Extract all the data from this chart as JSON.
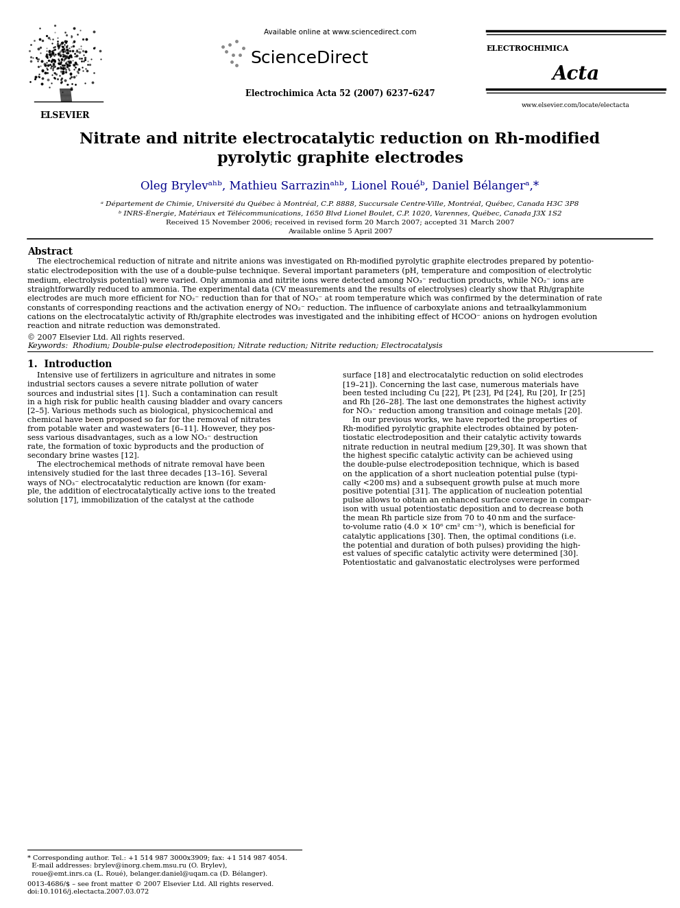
{
  "bg_color": "#ffffff",
  "title_line1": "Nitrate and nitrite electrocatalytic reduction on Rh-modified",
  "title_line2": "pyrolytic graphite electrodes",
  "author_line": "Oleg Brylevᵃʰᵇ, Mathieu Sarrazinᵃʰᵇ, Lionel Rouéᵇ, Daniel Bélangerᵃ,*",
  "affil_a": "ᵃ Département de Chimie, Université du Québec à Montréal, C.P. 8888, Succursale Centre-Ville, Montréal, Québec, Canada H3C 3P8",
  "affil_b": "ᵇ INRS-Énergie, Matériaux et Télécommunications, 1650 Blvd Lionel Boulet, C.P. 1020, Varennes, Québec, Canada J3X 1S2",
  "received": "Received 15 November 2006; received in revised form 20 March 2007; accepted 31 March 2007",
  "available_online_date": "Available online 5 April 2007",
  "journal_info": "Electrochimica Acta 52 (2007) 6237–6247",
  "available_online_text": "Available online at www.sciencedirect.com",
  "website": "www.elsevier.com/locate/electacta",
  "elsevier_text": "ELSEVIER",
  "electrochimica_text": "ELECTROCHIMICA",
  "acta_text": "Acta",
  "sciencedirect_text": "ScienceDirect",
  "abstract_title": "Abstract",
  "abstract_body": "    The electrochemical reduction of nitrate and nitrite anions was investigated on Rh-modified pyrolytic graphite electrodes prepared by potentio-\nstatic electrodeposition with the use of a double-pulse technique. Several important parameters (pH, temperature and composition of electrolytic\nmedium, electrolysis potential) were varied. Only ammonia and nitrite ions were detected among NO₃⁻ reduction products, while NO₂⁻ ions are\nstraightforwardly reduced to ammonia. The experimental data (CV measurements and the results of electrolyses) clearly show that Rh/graphite\nelectrodes are much more efficient for NO₂⁻ reduction than for that of NO₃⁻ at room temperature which was confirmed by the determination of rate\nconstants of corresponding reactions and the activation energy of NO₂⁻ reduction. The influence of carboxylate anions and tetraalkylammonium\ncations on the electrocatalytic activity of Rh/graphite electrodes was investigated and the inhibiting effect of HCOO⁻ anions on hydrogen evolution\nreaction and nitrate reduction was demonstrated.",
  "copyright": "© 2007 Elsevier Ltd. All rights reserved.",
  "keywords_line": "Keywords:  Rhodium; Double-pulse electrodeposition; Nitrate reduction; Nitrite reduction; Electrocatalysis",
  "intro_title": "1.  Introduction",
  "col1_lines": [
    "    Intensive use of fertilizers in agriculture and nitrates in some",
    "industrial sectors causes a severe nitrate pollution of water",
    "sources and industrial sites [1]. Such a contamination can result",
    "in a high risk for public health causing bladder and ovary cancers",
    "[2–5]. Various methods such as biological, physicochemical and",
    "chemical have been proposed so far for the removal of nitrates",
    "from potable water and wastewaters [6–11]. However, they pos-",
    "sess various disadvantages, such as a low NO₃⁻ destruction",
    "rate, the formation of toxic byproducts and the production of",
    "secondary brine wastes [12].",
    "    The electrochemical methods of nitrate removal have been",
    "intensively studied for the last three decades [13–16]. Several",
    "ways of NO₃⁻ electrocatalytic reduction are known (for exam-",
    "ple, the addition of electrocatalytically active ions to the treated",
    "solution [17], immobilization of the catalyst at the cathode"
  ],
  "col2_lines": [
    "surface [18] and electrocatalytic reduction on solid electrodes",
    "[19–21]). Concerning the last case, numerous materials have",
    "been tested including Cu [22], Pt [23], Pd [24], Ru [20], Ir [25]",
    "and Rh [26–28]. The last one demonstrates the highest activity",
    "for NO₃⁻ reduction among transition and coinage metals [20].",
    "    In our previous works, we have reported the properties of",
    "Rh-modified pyrolytic graphite electrodes obtained by poten-",
    "tiostatic electrodeposition and their catalytic activity towards",
    "nitrate reduction in neutral medium [29,30]. It was shown that",
    "the highest specific catalytic activity can be achieved using",
    "the double-pulse electrodeposition technique, which is based",
    "on the application of a short nucleation potential pulse (typi-",
    "cally <200 ms) and a subsequent growth pulse at much more",
    "positive potential [31]. The application of nucleation potential",
    "pulse allows to obtain an enhanced surface coverage in compar-",
    "ison with usual potentiostatic deposition and to decrease both",
    "the mean Rh particle size from 70 to 40 nm and the surface-",
    "to-volume ratio (4.0 × 10⁶ cm² cm⁻³), which is beneficial for",
    "catalytic applications [30]. Then, the optimal conditions (i.e.",
    "the potential and duration of both pulses) providing the high-",
    "est values of specific catalytic activity were determined [30].",
    "Potentiostatic and galvanostatic electrolyses were performed"
  ],
  "footnote_line1": "* Corresponding author. Tel.: +1 514 987 3000x3909; fax: +1 514 987 4054.",
  "footnote_line2": "  E-mail addresses: brylev@inorg.chem.msu.ru (O. Brylev),",
  "footnote_line3": "  roue@emt.inrs.ca (L. Roué), belanger.daniel@uqam.ca (D. Bélanger).",
  "article_info1": "0013-4686/$ – see front matter © 2007 Elsevier Ltd. All rights reserved.",
  "article_info2": "doi:10.1016/j.electacta.2007.03.072"
}
